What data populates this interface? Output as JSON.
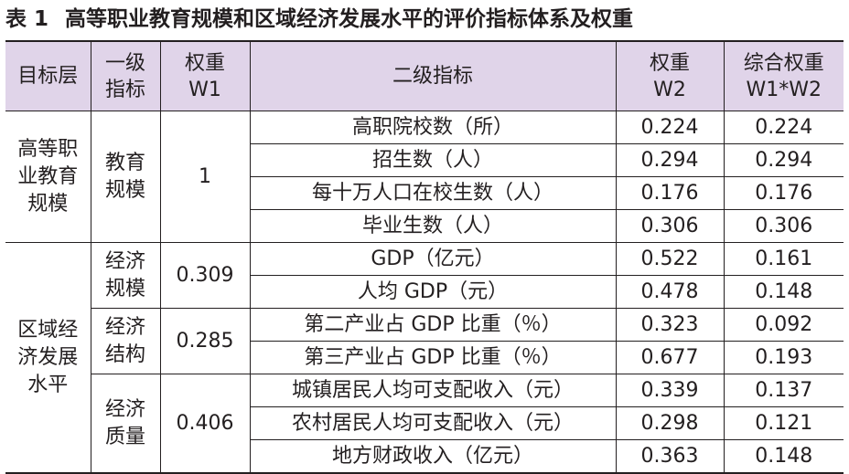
{
  "caption": {
    "number": "表 1",
    "title": "高等职业教育规模和区域经济发展水平的评价指标体系及权重"
  },
  "headers": {
    "col1": "目标层",
    "col2": [
      "一级",
      "指标"
    ],
    "col3": [
      "权重",
      "W1"
    ],
    "col4": "二级指标",
    "col5": [
      "权重",
      "W2"
    ],
    "col6": [
      "综合权重",
      "W1*W2"
    ]
  },
  "groups": [
    {
      "target": [
        "高等职",
        "业教育",
        "规模"
      ],
      "primaries": [
        {
          "name": [
            "教育",
            "规模"
          ],
          "w1": "1",
          "rows": [
            {
              "indicator": "高职院校数（所）",
              "w2": "0.224",
              "combined": "0.224"
            },
            {
              "indicator": "招生数（人）",
              "w2": "0.294",
              "combined": "0.294"
            },
            {
              "indicator": "每十万人口在校生数（人）",
              "w2": "0.176",
              "combined": "0.176"
            },
            {
              "indicator": "毕业生数（人）",
              "w2": "0.306",
              "combined": "0.306"
            }
          ]
        }
      ]
    },
    {
      "target": [
        "区域经",
        "济发展",
        "水平"
      ],
      "primaries": [
        {
          "name": [
            "经济",
            "规模"
          ],
          "w1": "0.309",
          "rows": [
            {
              "indicator": "GDP（亿元）",
              "w2": "0.522",
              "combined": "0.161"
            },
            {
              "indicator": "人均 GDP（元）",
              "w2": "0.478",
              "combined": "0.148"
            }
          ]
        },
        {
          "name": [
            "经济",
            "结构"
          ],
          "w1": "0.285",
          "rows": [
            {
              "indicator": "第二产业占 GDP 比重（％）",
              "w2": "0.323",
              "combined": "0.092"
            },
            {
              "indicator": "第三产业占 GDP 比重（％）",
              "w2": "0.677",
              "combined": "0.193"
            }
          ]
        },
        {
          "name": [
            "经济",
            "质量"
          ],
          "w1": "0.406",
          "rows": [
            {
              "indicator": "城镇居民人均可支配收入（元）",
              "w2": "0.339",
              "combined": "0.137"
            },
            {
              "indicator": "农村居民人均可支配收入（元）",
              "w2": "0.298",
              "combined": "0.121"
            },
            {
              "indicator": "地方财政收入（亿元）",
              "w2": "0.363",
              "combined": "0.148"
            }
          ]
        }
      ]
    }
  ]
}
